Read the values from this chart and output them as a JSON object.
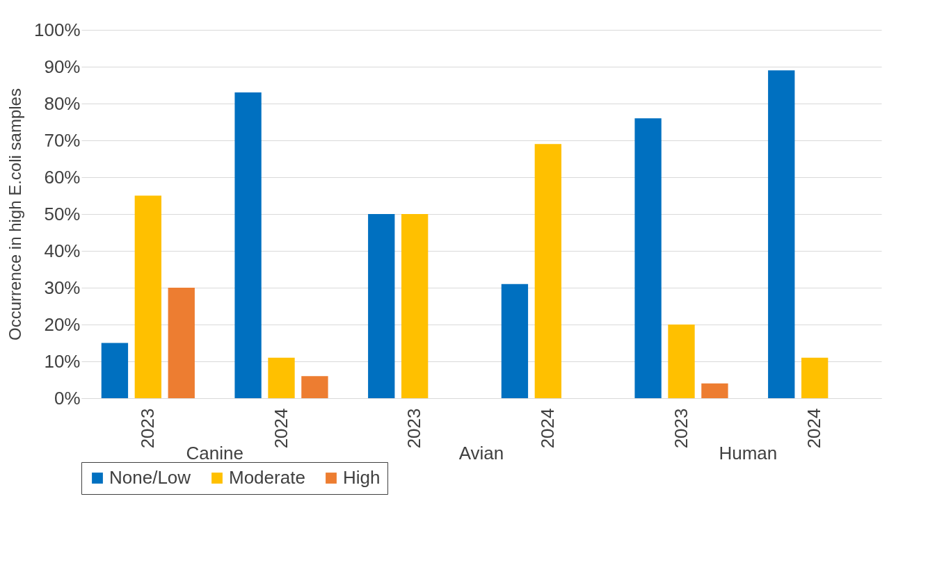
{
  "chart_data": {
    "type": "bar",
    "ylabel": "Occurrence in high E.coli samples",
    "categories": [
      "2023",
      "2024",
      "2023",
      "2024",
      "2023",
      "2024"
    ],
    "series": [
      {
        "name": "None/Low",
        "color": "#0070c0",
        "values": [
          15,
          83,
          50,
          31,
          76,
          89
        ]
      },
      {
        "name": "Moderate",
        "color": "#ffc000",
        "values": [
          55,
          11,
          50,
          69,
          20,
          11
        ]
      },
      {
        "name": "High",
        "color": "#ed7d31",
        "values": [
          30,
          6,
          0,
          0,
          4,
          0
        ]
      }
    ],
    "annotations": [
      "Canine",
      "Avian",
      "Human"
    ],
    "ylim": [
      0,
      100
    ],
    "yticks": [
      {
        "value": 0,
        "label": "0%"
      },
      {
        "value": 10,
        "label": "10%"
      },
      {
        "value": 20,
        "label": "20%"
      },
      {
        "value": 30,
        "label": "30%"
      },
      {
        "value": 40,
        "label": "40%"
      },
      {
        "value": 50,
        "label": "50%"
      },
      {
        "value": 60,
        "label": "60%"
      },
      {
        "value": 70,
        "label": "70%"
      },
      {
        "value": 80,
        "label": "80%"
      },
      {
        "value": 90,
        "label": "90%"
      },
      {
        "value": 100,
        "label": "100%"
      }
    ],
    "grid": "y",
    "legend": "bottom"
  }
}
